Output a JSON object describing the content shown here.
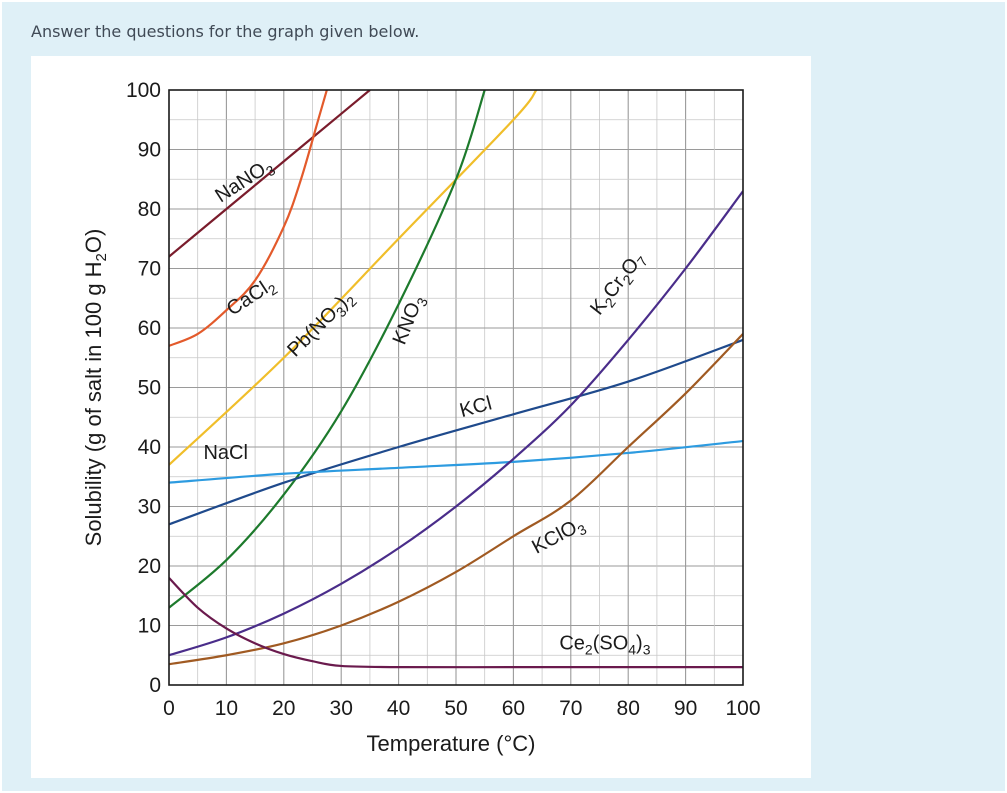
{
  "question": {
    "text": "Answer the questions for the graph given below."
  },
  "chart_data": {
    "type": "line",
    "title": "",
    "xlabel": "Temperature (°C)",
    "ylabel": "Solubility (g of salt in 100 g H₂O)",
    "xlim": [
      0,
      100
    ],
    "ylim": [
      0,
      100
    ],
    "x_ticks": [
      "0",
      "10",
      "20",
      "30",
      "40",
      "50",
      "60",
      "70",
      "80",
      "90",
      "100"
    ],
    "y_ticks": [
      "0",
      "10",
      "20",
      "30",
      "40",
      "50",
      "60",
      "70",
      "80",
      "90",
      "100"
    ],
    "grid": true,
    "legend": "none",
    "series": [
      {
        "name": "NaNO3",
        "label_parts": [
          [
            "NaNO",
            ""
          ],
          [
            "3",
            "sub"
          ]
        ],
        "label_at": [
          9,
          81
        ],
        "label_angle": -33,
        "color": "#7a1c2c",
        "x": [
          0,
          10,
          20,
          30,
          35
        ],
        "y": [
          72,
          80,
          88,
          96,
          100
        ]
      },
      {
        "name": "CaCl2",
        "label_parts": [
          [
            "CaCl",
            ""
          ],
          [
            "2",
            "sub"
          ]
        ],
        "label_at": [
          11,
          62
        ],
        "label_angle": -33,
        "color": "#e35a2b",
        "x": [
          0,
          5,
          10,
          15,
          20,
          23,
          26,
          27.5
        ],
        "y": [
          57,
          59,
          63,
          68,
          77,
          85,
          95,
          100
        ]
      },
      {
        "name": "Pb(NO3)2",
        "label_parts": [
          [
            "Pb(NO",
            ""
          ],
          [
            "3",
            "sub"
          ],
          [
            ")",
            ""
          ],
          [
            "2",
            "sub"
          ]
        ],
        "label_at": [
          22,
          55
        ],
        "label_angle": -45,
        "color": "#f0be2a",
        "x": [
          0,
          20,
          40,
          60,
          64
        ],
        "y": [
          37,
          55,
          75,
          95,
          100
        ]
      },
      {
        "name": "KNO3",
        "label_parts": [
          [
            "KNO",
            ""
          ],
          [
            "3",
            "sub"
          ]
        ],
        "label_at": [
          41,
          57
        ],
        "label_angle": -68,
        "color": "#1d7a2c",
        "x": [
          0,
          10,
          20,
          30,
          40,
          50,
          55
        ],
        "y": [
          13,
          21,
          32,
          46,
          64,
          85,
          100
        ]
      },
      {
        "name": "KCl",
        "label_parts": [
          [
            "KCl",
            ""
          ]
        ],
        "label_at": [
          51,
          45
        ],
        "label_angle": -15,
        "color": "#1f4a8c",
        "x": [
          0,
          20,
          40,
          60,
          80,
          100
        ],
        "y": [
          27,
          34,
          40,
          45.5,
          51,
          58
        ]
      },
      {
        "name": "NaCl",
        "label_parts": [
          [
            "NaCl",
            ""
          ]
        ],
        "label_at": [
          6,
          38
        ],
        "label_angle": 0,
        "color": "#2d9be0",
        "x": [
          0,
          20,
          40,
          60,
          80,
          100
        ],
        "y": [
          34,
          35.5,
          36.5,
          37.5,
          39,
          41
        ]
      },
      {
        "name": "K2Cr2O7",
        "label_parts": [
          [
            "K",
            ""
          ],
          [
            "2",
            "sub"
          ],
          [
            "Cr",
            ""
          ],
          [
            "2",
            "sub"
          ],
          [
            "O",
            ""
          ],
          [
            "7",
            "sub"
          ]
        ],
        "label_at": [
          75,
          62
        ],
        "label_angle": -52,
        "color": "#4a2d8a",
        "x": [
          0,
          10,
          20,
          30,
          40,
          50,
          60,
          70,
          80,
          90,
          100
        ],
        "y": [
          5,
          8,
          12,
          17,
          23,
          30,
          38,
          47,
          58,
          70,
          83
        ]
      },
      {
        "name": "KClO3",
        "label_parts": [
          [
            "KClO",
            ""
          ],
          [
            "3",
            "sub"
          ]
        ],
        "label_at": [
          64,
          22
        ],
        "label_angle": -28,
        "color": "#a05a22",
        "x": [
          0,
          10,
          20,
          30,
          40,
          50,
          60,
          70,
          80,
          90,
          100
        ],
        "y": [
          3.5,
          5,
          7,
          10,
          14,
          19,
          25,
          31,
          40,
          49,
          59
        ]
      },
      {
        "name": "Ce2(SO4)3",
        "label_parts": [
          [
            "Ce",
            ""
          ],
          [
            "2",
            "sub"
          ],
          [
            "(SO",
            ""
          ],
          [
            "4",
            "sub"
          ],
          [
            ")",
            ""
          ],
          [
            "3",
            "sub"
          ]
        ],
        "label_at": [
          68,
          6
        ],
        "label_angle": 0,
        "color": "#6a1a4d",
        "x": [
          0,
          5,
          10,
          15,
          20,
          25,
          30,
          40,
          60,
          80,
          100
        ],
        "y": [
          18,
          13,
          9.5,
          7,
          5.2,
          4,
          3.2,
          3,
          3,
          3,
          3
        ]
      }
    ]
  }
}
